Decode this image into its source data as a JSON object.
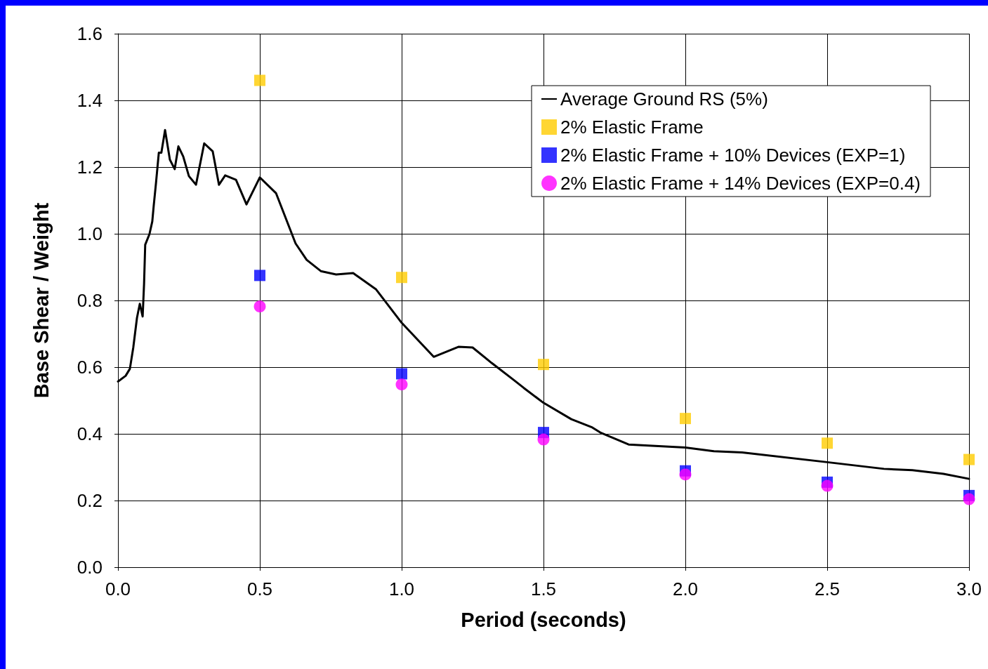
{
  "chart_data": {
    "type": "scatter",
    "xlabel": "Period (seconds)",
    "ylabel": "Base Shear / Weight",
    "xlim": [
      0,
      3
    ],
    "xticks": [
      {
        "value": 0,
        "label": "0.0"
      },
      0.5,
      {
        "value": 1,
        "label": "1.0"
      },
      1.5,
      {
        "value": 2,
        "label": "2.0"
      },
      2.5,
      {
        "value": 3,
        "label": "3.0"
      }
    ],
    "ylim": [
      0,
      1.6
    ],
    "yticks": [
      {
        "value": 0,
        "label": "0.0"
      },
      0.2,
      0.4,
      0.6,
      0.8,
      {
        "value": 1,
        "label": "1.0"
      },
      1.2,
      1.4,
      1.6
    ],
    "grid": true,
    "legend": "top right",
    "series": [
      {
        "name": "Average Ground RS (5%)",
        "type": "line",
        "marker": "none",
        "line_style": "solid",
        "color": "#000000",
        "x": [
          0,
          0.027,
          0.042,
          0.054,
          0.067,
          0.077,
          0.087,
          0.092,
          0.096,
          0.111,
          0.121,
          0.126,
          0.134,
          0.144,
          0.153,
          0.166,
          0.183,
          0.2,
          0.213,
          0.23,
          0.25,
          0.275,
          0.304,
          0.334,
          0.356,
          0.378,
          0.416,
          0.453,
          0.5,
          0.557,
          0.626,
          0.665,
          0.715,
          0.769,
          0.829,
          0.91,
          1.0,
          1.113,
          1.2,
          1.25,
          1.318,
          1.393,
          1.43,
          1.5,
          1.598,
          1.672,
          1.7,
          1.8,
          2.0,
          2.1,
          2.2,
          2.5,
          2.7,
          2.8,
          2.91,
          3.0
        ],
        "values": [
          0.557,
          0.574,
          0.595,
          0.659,
          0.748,
          0.79,
          0.752,
          0.85,
          0.967,
          0.999,
          1.037,
          1.084,
          1.152,
          1.243,
          1.243,
          1.311,
          1.222,
          1.194,
          1.262,
          1.232,
          1.173,
          1.147,
          1.271,
          1.247,
          1.147,
          1.175,
          1.162,
          1.088,
          1.169,
          1.122,
          0.971,
          0.922,
          0.888,
          0.878,
          0.882,
          0.833,
          0.733,
          0.631,
          0.661,
          0.659,
          0.612,
          0.563,
          0.538,
          0.493,
          0.444,
          0.419,
          0.404,
          0.368,
          0.359,
          0.348,
          0.344,
          0.315,
          0.295,
          0.291,
          0.28,
          0.265
        ]
      },
      {
        "name": "2% Elastic Frame",
        "marker": "square",
        "color": "#ffcc00",
        "x": [
          0.5,
          1.0,
          1.5,
          2.0,
          2.5,
          3.0
        ],
        "values": [
          1.46,
          0.869,
          0.608,
          0.446,
          0.372,
          0.323
        ]
      },
      {
        "name": "2% Elastic Frame + 10% Devices (EXP=1)",
        "marker": "square",
        "color": "#0000ff",
        "x": [
          0.5,
          1.0,
          1.5,
          2.0,
          2.5,
          3.0
        ],
        "values": [
          0.875,
          0.58,
          0.404,
          0.289,
          0.255,
          0.215
        ]
      },
      {
        "name": "2% Elastic Frame + 14% Devices (EXP=0.4)",
        "marker": "circle",
        "color": "#ff00ff",
        "x": [
          0.5,
          1.0,
          1.5,
          2.0,
          2.5,
          3.0
        ],
        "values": [
          0.782,
          0.548,
          0.383,
          0.278,
          0.244,
          0.204
        ]
      }
    ]
  }
}
